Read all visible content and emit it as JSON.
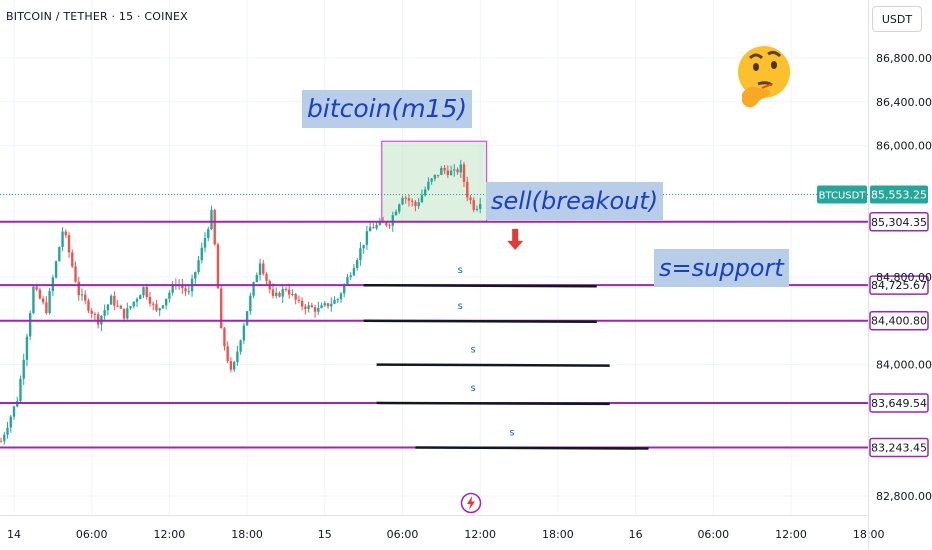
{
  "header": {
    "symbol_title": "BITCOIN / TETHER · 15 · COINEX",
    "currency_button": "USDT"
  },
  "annotations": {
    "title_box": "bitcoin(m15)",
    "sell_box": "sell(breakout)",
    "support_box": "s=support",
    "support_marker": "s"
  },
  "colors": {
    "up": "#26a69a",
    "down": "#ef5350",
    "level_line": "#9c27b0",
    "support_line": "#131722",
    "annotation_bg": "#b8cde8",
    "annotation_text": "#1a3fbf",
    "arrow": "#e53935",
    "range_box": "#c8e6c9"
  },
  "icons": [
    "thinking-face-icon",
    "lightning-icon",
    "down-arrow-icon"
  ],
  "chart_data": {
    "type": "candlestick",
    "title": "BITCOIN / TETHER · 15 · COINEX",
    "ylim": [
      82600,
      87100
    ],
    "y_ticks": [
      "86,800.00",
      "86,400.00",
      "86,000.00",
      "84,800.00",
      "84,000.00",
      "82,800.00"
    ],
    "x_ticks": [
      "14",
      "06:00",
      "12:00",
      "18:00",
      "15",
      "06:00",
      "12:00",
      "18:00",
      "16",
      "06:00",
      "12:00",
      "18:00"
    ],
    "x_tick_hours": [
      0,
      6,
      12,
      18,
      24,
      30,
      36,
      42,
      48,
      54,
      60,
      66
    ],
    "last_price": {
      "label": "BTCUSDT",
      "value": 85553.25,
      "value_text": "85,553.25"
    },
    "levels": [
      {
        "value": 85304.35,
        "text": "85,304.35"
      },
      {
        "value": 84725.67,
        "text": "84,725.67"
      },
      {
        "value": 84400.8,
        "text": "84,400.80"
      },
      {
        "value": 83649.54,
        "text": "83,649.54"
      },
      {
        "value": 83243.45,
        "text": "83,243.45"
      }
    ],
    "support_lines": [
      {
        "start_hour": 27.0,
        "end_hour": 45.0,
        "value": 84725
      },
      {
        "start_hour": 27.0,
        "end_hour": 45.0,
        "value": 84400
      },
      {
        "start_hour": 28.0,
        "end_hour": 46.0,
        "value": 84000
      },
      {
        "start_hour": 28.0,
        "end_hour": 46.0,
        "value": 83650
      },
      {
        "start_hour": 31.0,
        "end_hour": 49.0,
        "value": 83243
      }
    ],
    "range_box": {
      "start_hour": 28.4,
      "end_hour": 36.5,
      "low": 85304,
      "high": 86040
    },
    "sell_arrow": {
      "hour": 38.7,
      "value": 85240
    },
    "series": [
      {
        "name": "Candles",
        "anchors": [
          [
            -1.0,
            83300
          ],
          [
            0.3,
            83700
          ],
          [
            1.5,
            84700
          ],
          [
            2.5,
            84500
          ],
          [
            3.8,
            85250
          ],
          [
            5.0,
            84650
          ],
          [
            6.5,
            84400
          ],
          [
            7.5,
            84600
          ],
          [
            8.5,
            84450
          ],
          [
            10.0,
            84700
          ],
          [
            11.0,
            84480
          ],
          [
            12.5,
            84750
          ],
          [
            13.5,
            84650
          ],
          [
            14.5,
            85050
          ],
          [
            15.3,
            85400
          ],
          [
            16.0,
            84300
          ],
          [
            16.8,
            83900
          ],
          [
            18.0,
            84500
          ],
          [
            19.0,
            84950
          ],
          [
            20.0,
            84600
          ],
          [
            21.0,
            84700
          ],
          [
            22.0,
            84550
          ],
          [
            23.5,
            84500
          ],
          [
            25.0,
            84600
          ],
          [
            26.0,
            84850
          ],
          [
            27.5,
            85250
          ],
          [
            29.0,
            85300
          ],
          [
            30.0,
            85550
          ],
          [
            31.0,
            85450
          ],
          [
            32.0,
            85650
          ],
          [
            33.0,
            85780
          ],
          [
            34.0,
            85750
          ],
          [
            34.5,
            85800
          ],
          [
            35.0,
            85550
          ],
          [
            35.6,
            85420
          ],
          [
            36.0,
            85500
          ]
        ]
      }
    ]
  }
}
